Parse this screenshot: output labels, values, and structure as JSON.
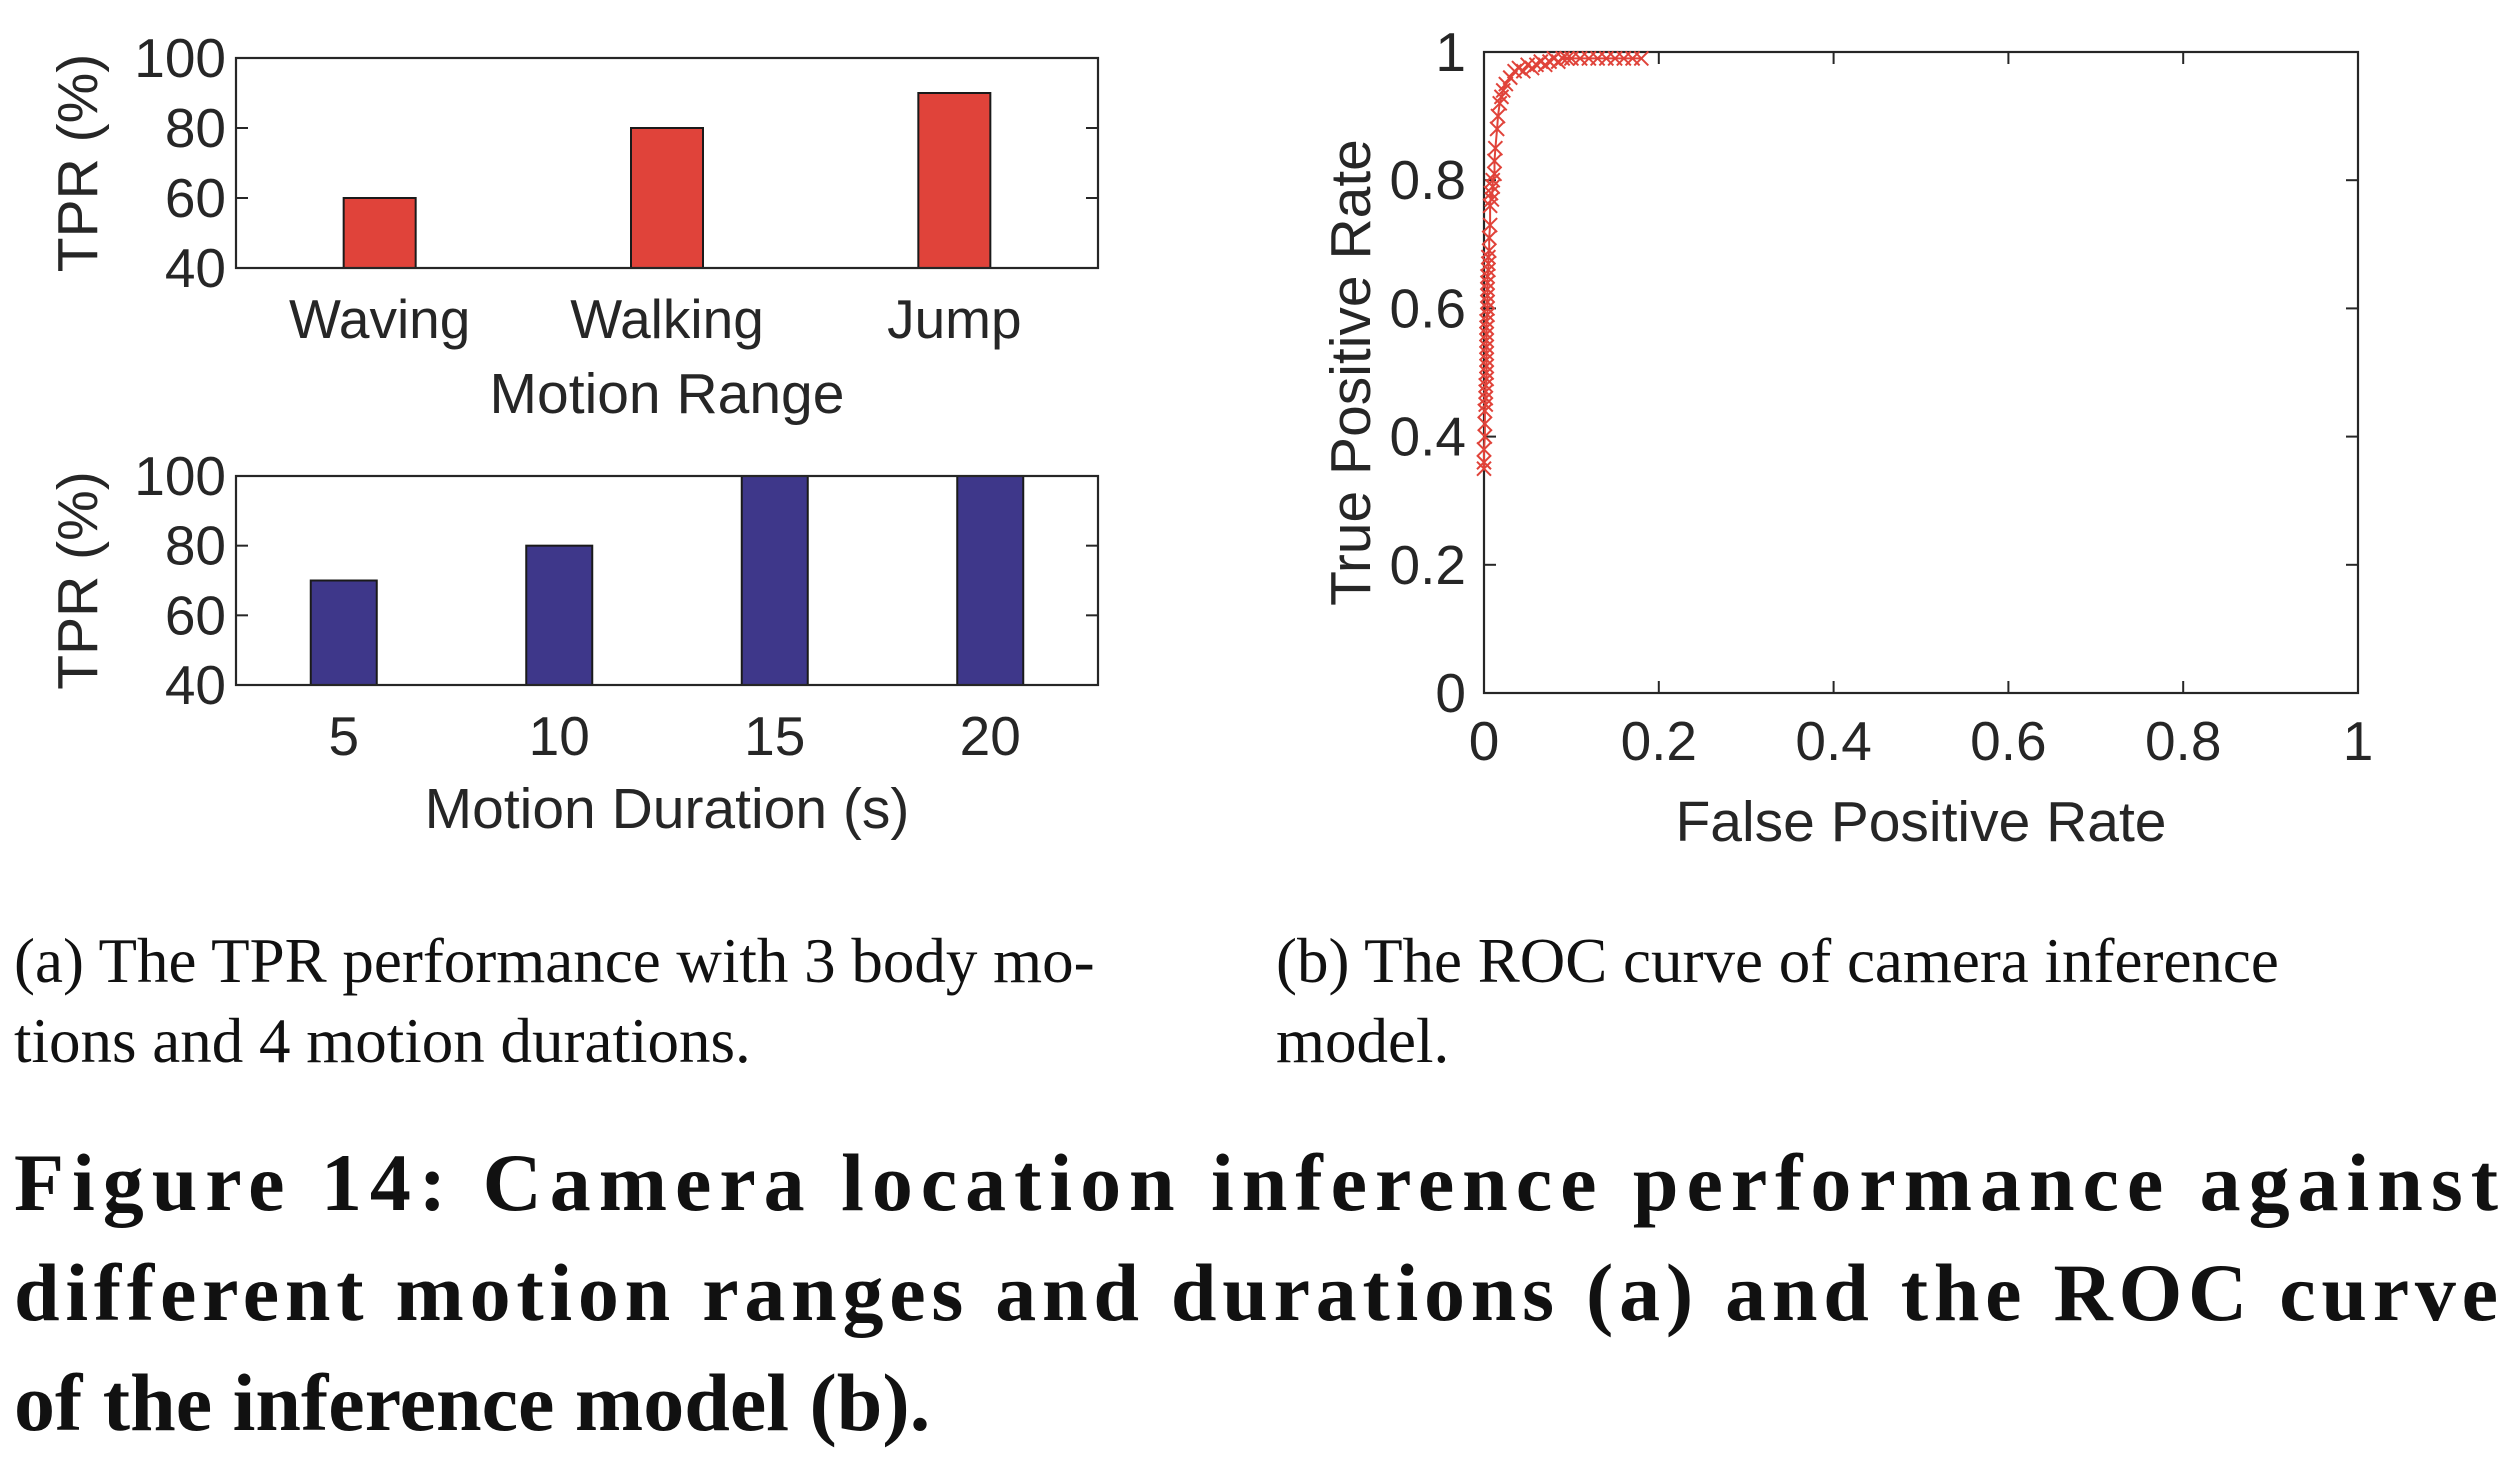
{
  "chart_data": [
    {
      "id": "motion-range",
      "type": "bar",
      "categories": [
        "Waving",
        "Walking",
        "Jump"
      ],
      "values": [
        60,
        80,
        90
      ],
      "xlabel": "Motion Range",
      "ylabel": "TPR (%)",
      "ylim": [
        40,
        100
      ],
      "yticks": [
        40,
        60,
        80,
        100
      ],
      "color": "#e0433a",
      "grid": false
    },
    {
      "id": "motion-duration",
      "type": "bar",
      "categories": [
        "5",
        "10",
        "15",
        "20"
      ],
      "values": [
        70,
        80,
        100,
        100
      ],
      "xlabel": "Motion Duration (s)",
      "ylabel": "TPR (%)",
      "ylim": [
        40,
        100
      ],
      "yticks": [
        40,
        60,
        80,
        100
      ],
      "color": "#3e378a",
      "grid": false
    },
    {
      "id": "roc",
      "type": "line",
      "marker": "x",
      "xlabel": "False Positive Rate",
      "ylabel": "True Positive Rate",
      "xlim": [
        0,
        1
      ],
      "ylim": [
        0,
        1
      ],
      "xticks": [
        0,
        0.2,
        0.4,
        0.6,
        0.8,
        1
      ],
      "yticks": [
        0,
        0.2,
        0.4,
        0.6,
        0.8,
        1
      ],
      "xtick_labels": [
        "0",
        "0.2",
        "0.4",
        "0.6",
        "0.8",
        "1"
      ],
      "ytick_labels": [
        "0",
        "0.2",
        "0.4",
        "0.6",
        "0.8",
        "1"
      ],
      "color": "#e0433a",
      "grid": false,
      "x": [
        0.0,
        0.0,
        0.0,
        0.001,
        0.001,
        0.001,
        0.002,
        0.002,
        0.002,
        0.002,
        0.003,
        0.003,
        0.003,
        0.003,
        0.003,
        0.003,
        0.003,
        0.003,
        0.003,
        0.003,
        0.004,
        0.004,
        0.004,
        0.004,
        0.004,
        0.004,
        0.004,
        0.005,
        0.005,
        0.005,
        0.006,
        0.006,
        0.007,
        0.007,
        0.008,
        0.009,
        0.01,
        0.01,
        0.012,
        0.012,
        0.013,
        0.015,
        0.016,
        0.018,
        0.02,
        0.022,
        0.025,
        0.03,
        0.035,
        0.04,
        0.045,
        0.05,
        0.055,
        0.06,
        0.065,
        0.07,
        0.075,
        0.08,
        0.085,
        0.09,
        0.095,
        0.1,
        0.11,
        0.12,
        0.13,
        0.14,
        0.15,
        0.16,
        0.17,
        0.18
      ],
      "y": [
        0.35,
        0.36,
        0.38,
        0.4,
        0.42,
        0.44,
        0.45,
        0.46,
        0.47,
        0.48,
        0.49,
        0.5,
        0.51,
        0.52,
        0.53,
        0.54,
        0.55,
        0.56,
        0.57,
        0.58,
        0.59,
        0.6,
        0.61,
        0.62,
        0.63,
        0.64,
        0.65,
        0.66,
        0.67,
        0.68,
        0.69,
        0.71,
        0.73,
        0.76,
        0.78,
        0.77,
        0.79,
        0.8,
        0.81,
        0.83,
        0.85,
        0.88,
        0.9,
        0.92,
        0.93,
        0.94,
        0.95,
        0.96,
        0.97,
        0.975,
        0.97,
        0.98,
        0.975,
        0.98,
        0.985,
        0.98,
        0.985,
        0.99,
        0.985,
        0.99,
        0.99,
        0.99,
        0.99,
        0.99,
        0.99,
        0.99,
        0.99,
        0.99,
        0.99,
        0.99
      ]
    }
  ],
  "captions": {
    "sub_a_line1": "(a)  The TPR performance with 3 body mo-",
    "sub_a_line2": "tions and 4 motion durations.",
    "sub_b_line1": "(b)  The ROC curve of camera inference",
    "sub_b_line2": "model.",
    "figure_line1": "Figure 14: Camera location inference performance against",
    "figure_line2": "different motion ranges and durations (a) and the ROC curve",
    "figure_line3": "of the inference model (b)."
  }
}
